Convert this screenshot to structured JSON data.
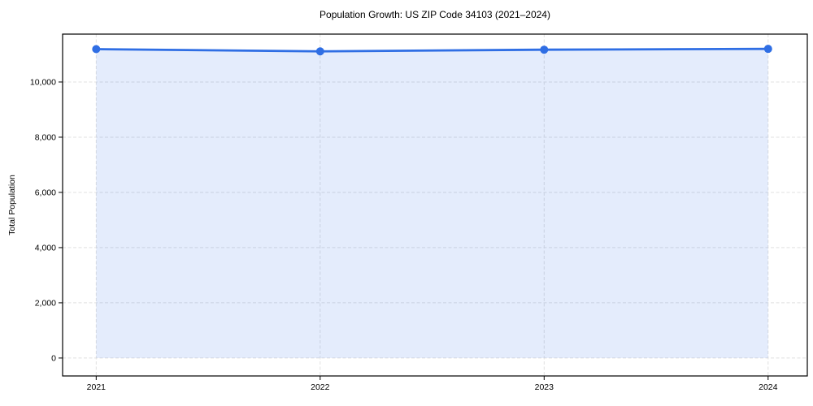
{
  "chart_data": {
    "type": "line",
    "title": "Population Growth: US ZIP Code 34103 (2021–2024)",
    "xlabel": "",
    "ylabel": "Total Population",
    "x": [
      2021,
      2022,
      2023,
      2024
    ],
    "categories": [
      "2021",
      "2022",
      "2023",
      "2024"
    ],
    "series": [
      {
        "name": "Total Population",
        "values": [
          11190,
          11110,
          11170,
          11200
        ]
      }
    ],
    "xlim": [
      2020.85,
      2024.175
    ],
    "ylim": [
      -650,
      11735
    ],
    "yticks": [
      0,
      2000,
      4000,
      6000,
      8000,
      10000
    ],
    "ytick_labels": [
      "0",
      "2,000",
      "4,000",
      "6,000",
      "8,000",
      "10,000"
    ],
    "xticks": [
      2021,
      2022,
      2023,
      2024
    ],
    "xtick_labels": [
      "2021",
      "2022",
      "2023",
      "2024"
    ],
    "grid": true,
    "grid_style": "dashed",
    "legend": false,
    "area_fill_to": 0,
    "line_color": "#2f6ee4",
    "marker_color": "#2f6ee4",
    "fill_color": "rgba(47,110,228,0.13)",
    "grid_color": "#e0e0e0",
    "spine_color": "#000000",
    "background_color": "#ffffff"
  }
}
